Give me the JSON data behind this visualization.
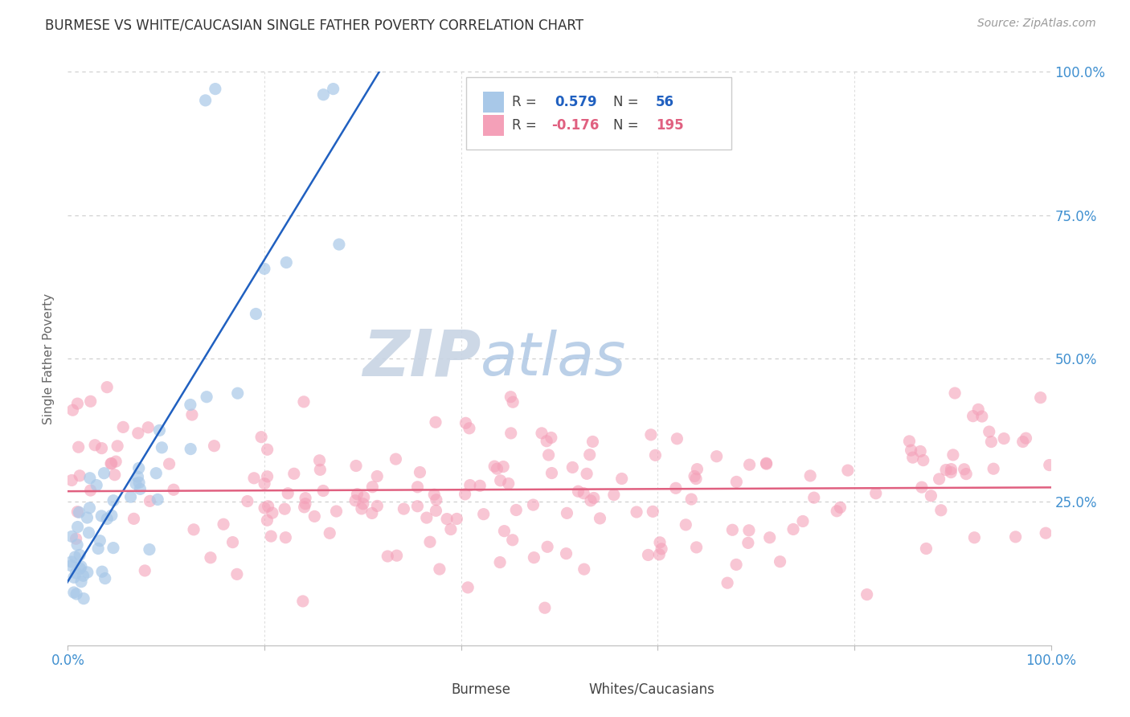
{
  "title": "BURMESE VS WHITE/CAUCASIAN SINGLE FATHER POVERTY CORRELATION CHART",
  "source": "Source: ZipAtlas.com",
  "ylabel": "Single Father Poverty",
  "burmese_R": 0.579,
  "burmese_N": 56,
  "white_R": -0.176,
  "white_N": 195,
  "burmese_color": "#A8C8E8",
  "white_color": "#F4A0B8",
  "burmese_line_color": "#2060C0",
  "white_line_color": "#E06080",
  "background_color": "#ffffff",
  "grid_color": "#cccccc",
  "watermark_zip_color": "#C8D4E8",
  "watermark_atlas_color": "#B8C8E0",
  "right_axis_color": "#4090D0",
  "title_fontsize": 12,
  "source_fontsize": 10,
  "burmese_scatter_alpha": 0.7,
  "white_scatter_alpha": 0.6,
  "scatter_size": 120
}
